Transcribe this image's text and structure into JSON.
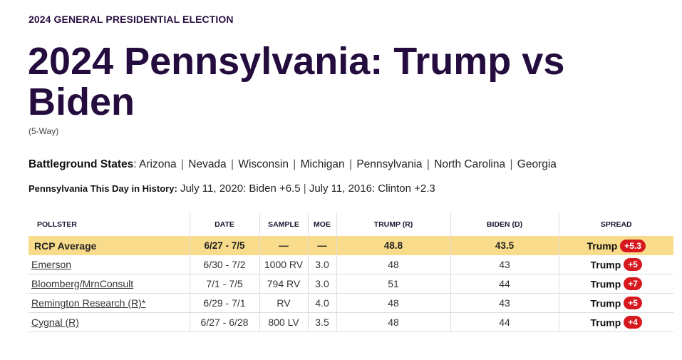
{
  "header": {
    "eyebrow": "2024 GENERAL PRESIDENTIAL ELECTION",
    "title": "2024 Pennsylvania: Trump vs Biden",
    "subtitle": "(5-Way)"
  },
  "battleground": {
    "label": "Battleground States",
    "colon": ":",
    "separator": "|",
    "states": [
      "Arizona",
      "Nevada",
      "Wisconsin",
      "Michigan",
      "Pennsylvania",
      "North Carolina",
      "Georgia"
    ]
  },
  "history": {
    "label": "Pennsylvania This Day in History:",
    "separator": "|",
    "items": [
      "July 11, 2020: Biden +6.5",
      "July 11, 2016: Clinton +2.3"
    ]
  },
  "table": {
    "columns": [
      "POLLSTER",
      "DATE",
      "SAMPLE",
      "MOE",
      "TRUMP (R)",
      "BIDEN (D)",
      "SPREAD"
    ],
    "average": {
      "pollster": "RCP Average",
      "date": "6/27 - 7/5",
      "sample": "—",
      "moe": "—",
      "trump": "48.8",
      "biden": "43.5",
      "spread_candidate": "Trump",
      "spread_value": "+5.3"
    },
    "rows": [
      {
        "pollster": "Emerson",
        "date": "6/30 - 7/2",
        "sample": "1000 RV",
        "moe": "3.0",
        "trump": "48",
        "biden": "43",
        "spread_candidate": "Trump",
        "spread_value": "+5"
      },
      {
        "pollster": "Bloomberg/MrnConsult",
        "date": "7/1 - 7/5",
        "sample": "794 RV",
        "moe": "3.0",
        "trump": "51",
        "biden": "44",
        "spread_candidate": "Trump",
        "spread_value": "+7"
      },
      {
        "pollster": "Remington Research (R)*",
        "date": "6/29 - 7/1",
        "sample": "RV",
        "moe": "4.0",
        "trump": "48",
        "biden": "43",
        "spread_candidate": "Trump",
        "spread_value": "+5"
      },
      {
        "pollster": "Cygnal (R)",
        "date": "6/27 - 6/28",
        "sample": "800 LV",
        "moe": "3.5",
        "trump": "48",
        "biden": "44",
        "spread_candidate": "Trump",
        "spread_value": "+4"
      }
    ]
  },
  "colors": {
    "title": "#240d3e",
    "average_row_bg": "#f9dc8b",
    "spread_badge": "#d7191f"
  }
}
